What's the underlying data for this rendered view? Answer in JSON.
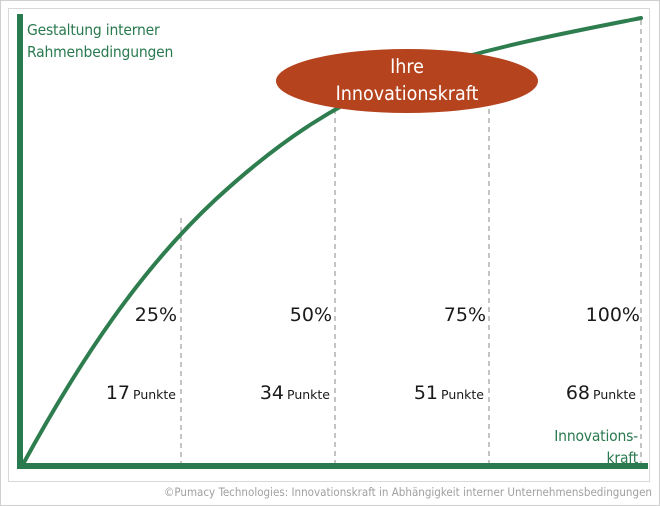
{
  "diagram": {
    "y_axis_label": [
      "Gestaltung interner",
      "Rahmenbedingungen"
    ],
    "x_axis_label": [
      "Innovations-",
      "kraft"
    ],
    "highlight": [
      "Ihre",
      "Innovationskraft"
    ],
    "levels": [
      {
        "percent": "25%",
        "points": "17",
        "unit": "Punkte"
      },
      {
        "percent": "50%",
        "points": "34",
        "unit": "Punkte"
      },
      {
        "percent": "75%",
        "points": "51",
        "unit": "Punkte"
      },
      {
        "percent": "100%",
        "points": "68",
        "unit": "Punkte"
      }
    ],
    "copyright": "©Pumacy Technologies: Innovationskraft in Abhängigkeit interner Unternehmensbedingungen"
  },
  "colors": {
    "axis_green": "#2a7a4f",
    "curve_green": "#2e7d4f",
    "bubble_fill": "#b5431e",
    "label_green": "#2a7a4f"
  }
}
